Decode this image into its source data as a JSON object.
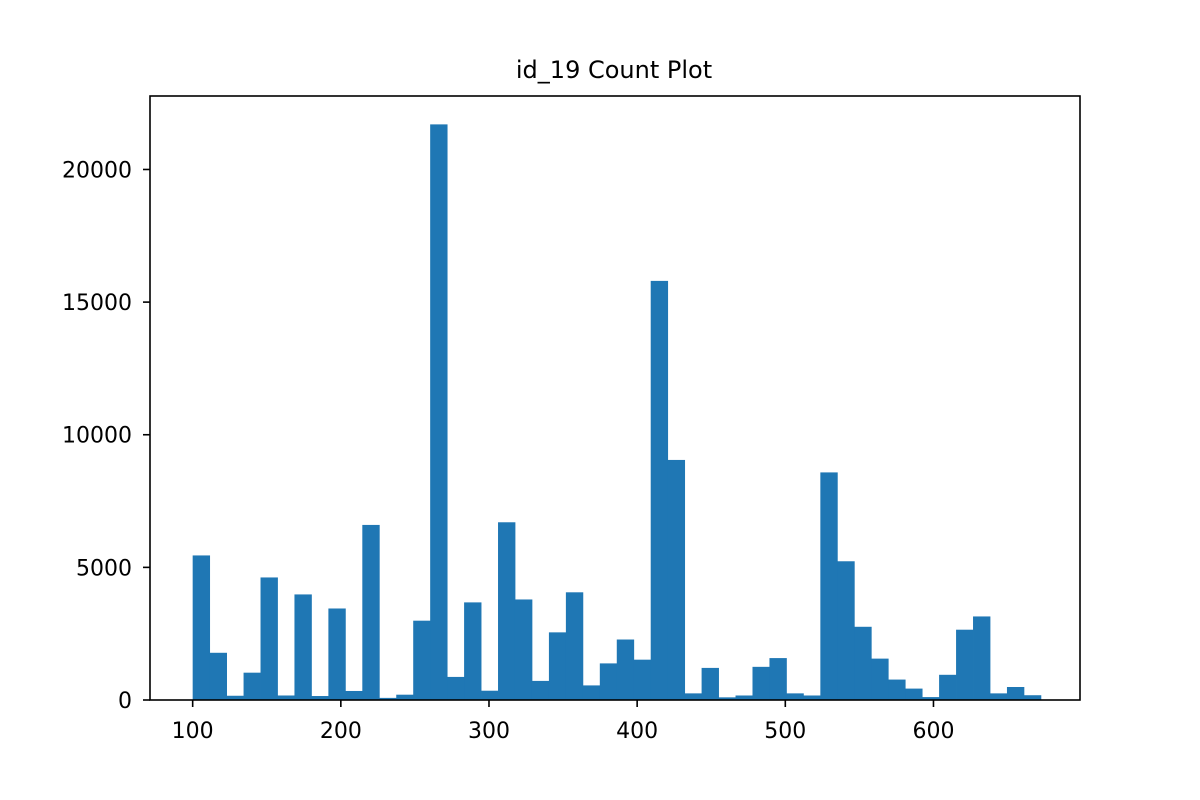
{
  "chart_data": {
    "type": "bar",
    "title": "id_19 Count Plot",
    "xlabel": "",
    "ylabel": "",
    "xlim": [
      71.2,
      698.9
    ],
    "ylim": [
      0,
      22770
    ],
    "xticks": [
      100,
      200,
      300,
      400,
      500,
      600
    ],
    "yticks": [
      0,
      5000,
      10000,
      15000,
      20000
    ],
    "bar_color": "#1f77b4",
    "bin_start": 100,
    "bin_width": 11.45,
    "values": [
      5450,
      1780,
      160,
      1030,
      4620,
      170,
      3980,
      150,
      3450,
      340,
      6600,
      80,
      200,
      2990,
      21700,
      870,
      3680,
      350,
      6700,
      3790,
      720,
      2550,
      4060,
      550,
      1380,
      2280,
      1520,
      15800,
      9050,
      250,
      1210,
      100,
      170,
      1250,
      1580,
      250,
      170,
      8580,
      5230,
      2760,
      1560,
      770,
      430,
      110,
      950,
      2650,
      3150,
      250,
      490,
      180
    ],
    "grid": false,
    "legend": "none"
  }
}
